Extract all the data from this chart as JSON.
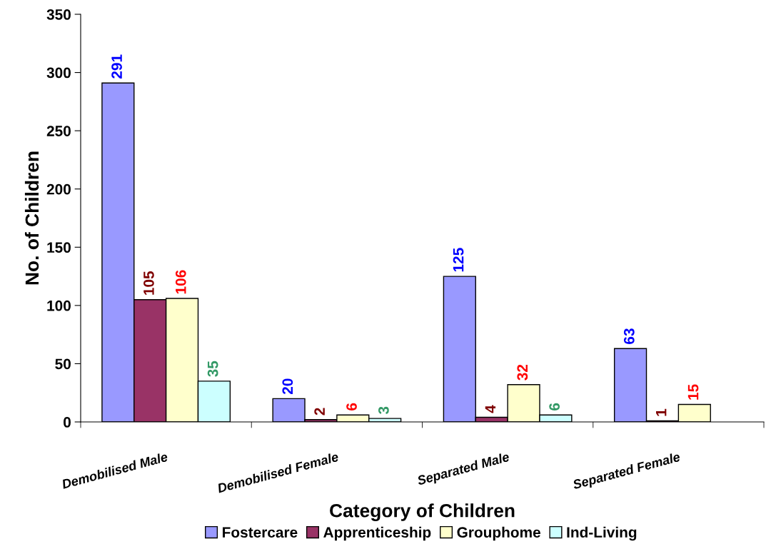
{
  "chart_data": {
    "type": "bar",
    "xlabel": "Category of Children",
    "ylabel": "No. of Children",
    "categories": [
      "Demobilised Male",
      "Demobilised Female",
      "Separated Male",
      "Separated Female"
    ],
    "series": [
      {
        "name": "Fostercare",
        "color": "#9999ff",
        "values": [
          291,
          20,
          125,
          63
        ]
      },
      {
        "name": "Apprenticeship",
        "color": "#993366",
        "values": [
          105,
          2,
          4,
          1
        ]
      },
      {
        "name": "Grouphome",
        "color": "#ffffcc",
        "values": [
          106,
          6,
          32,
          15
        ]
      },
      {
        "name": "Ind-Living",
        "color": "#ccffff",
        "values": [
          35,
          3,
          6,
          null
        ]
      }
    ],
    "ylim": [
      0,
      350
    ],
    "yticks": [
      0,
      50,
      100,
      150,
      200,
      250,
      300,
      350
    ],
    "grid": false,
    "legend": "bottom",
    "data_labels": true
  }
}
